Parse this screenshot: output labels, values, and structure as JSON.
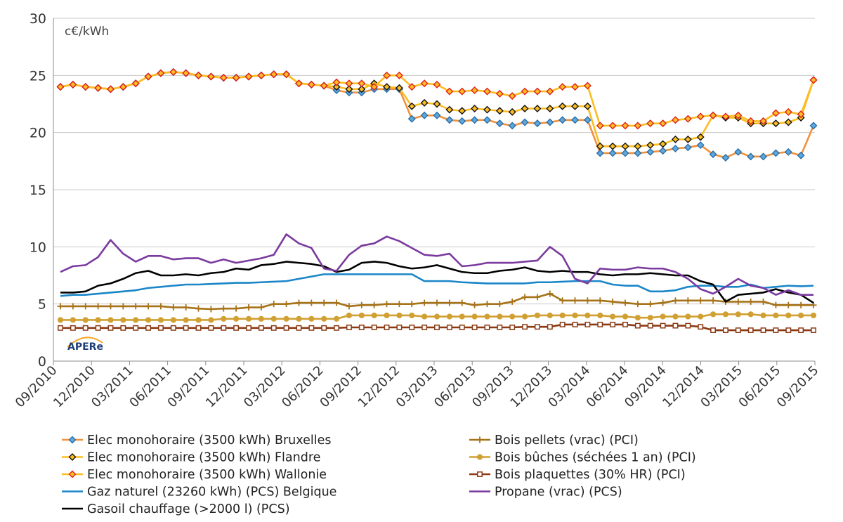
{
  "chart_data": {
    "type": "line",
    "unit_label": "c€/kWh",
    "logo": "APERe",
    "ylim": [
      0,
      30
    ],
    "yticks": [
      0,
      5,
      10,
      15,
      20,
      25,
      30
    ],
    "xtick_labels": [
      "09/2010",
      "12/2010",
      "03/2011",
      "06/2011",
      "09/2011",
      "12/2011",
      "03/2012",
      "06/2012",
      "09/2012",
      "12/2012",
      "03/2013",
      "06/2013",
      "09/2013",
      "12/2013",
      "03/2014",
      "06/2014",
      "09/2014",
      "12/2014",
      "03/2015",
      "06/2015",
      "09/2015"
    ],
    "grid": "horizontal",
    "legend_position": "bottom",
    "series": [
      {
        "name": "Elec monohoraire (3500 kWh) Bruxelles",
        "color": "#f0923c",
        "marker": "diamond-blue",
        "values": [
          24.0,
          24.2,
          24.0,
          23.9,
          23.8,
          24.0,
          24.3,
          24.9,
          25.2,
          25.3,
          25.2,
          25.0,
          24.9,
          24.8,
          24.8,
          24.9,
          25.0,
          25.1,
          25.1,
          24.3,
          24.2,
          24.1,
          23.7,
          23.5,
          23.5,
          23.8,
          23.8,
          23.8,
          21.2,
          21.5,
          21.5,
          21.1,
          21.0,
          21.1,
          21.1,
          20.8,
          20.6,
          20.9,
          20.8,
          20.9,
          21.1,
          21.1,
          21.1,
          18.2,
          18.2,
          18.2,
          18.2,
          18.3,
          18.4,
          18.6,
          18.7,
          18.9,
          18.1,
          17.8,
          18.3,
          17.9,
          17.9,
          18.2,
          18.3,
          18.0,
          20.6
        ]
      },
      {
        "name": "Elec monohoraire (3500 kWh) Flandre",
        "color": "#fcbd24",
        "marker": "diamond-black",
        "values": [
          24.0,
          24.2,
          24.0,
          23.9,
          23.8,
          24.0,
          24.3,
          24.9,
          25.2,
          25.3,
          25.2,
          25.0,
          24.9,
          24.8,
          24.8,
          24.9,
          25.0,
          25.1,
          25.1,
          24.3,
          24.2,
          24.1,
          24.0,
          23.8,
          23.8,
          24.3,
          24.0,
          23.9,
          22.3,
          22.6,
          22.5,
          22.0,
          21.9,
          22.1,
          22.0,
          21.9,
          21.8,
          22.1,
          22.1,
          22.1,
          22.3,
          22.3,
          22.3,
          18.8,
          18.8,
          18.8,
          18.8,
          18.9,
          19.0,
          19.4,
          19.4,
          19.6,
          21.5,
          21.3,
          21.3,
          20.8,
          20.8,
          20.8,
          20.9,
          21.3,
          24.6
        ]
      },
      {
        "name": "Elec monohoraire (3500 kWh) Wallonie",
        "color": "#fcbd24",
        "marker": "diamond-red",
        "values": [
          24.0,
          24.2,
          24.0,
          23.9,
          23.8,
          24.0,
          24.3,
          24.9,
          25.2,
          25.3,
          25.2,
          25.0,
          24.9,
          24.8,
          24.8,
          24.9,
          25.0,
          25.1,
          25.1,
          24.3,
          24.2,
          24.1,
          24.4,
          24.3,
          24.3,
          24.0,
          25.0,
          25.0,
          24.0,
          24.3,
          24.2,
          23.6,
          23.6,
          23.7,
          23.6,
          23.4,
          23.2,
          23.6,
          23.6,
          23.6,
          24.0,
          24.0,
          24.1,
          20.6,
          20.6,
          20.6,
          20.6,
          20.8,
          20.8,
          21.1,
          21.2,
          21.4,
          21.5,
          21.4,
          21.5,
          21.0,
          21.0,
          21.7,
          21.8,
          21.6,
          24.6
        ]
      },
      {
        "name": "Gaz naturel (23260 kWh) (PCS) Belgique",
        "color": "#1a86c8",
        "values": [
          5.7,
          5.8,
          5.8,
          5.9,
          6.0,
          6.1,
          6.2,
          6.4,
          6.5,
          6.6,
          6.7,
          6.7,
          6.75,
          6.8,
          6.85,
          6.85,
          6.9,
          6.95,
          7.0,
          7.2,
          7.4,
          7.6,
          7.6,
          7.6,
          7.6,
          7.6,
          7.6,
          7.6,
          7.6,
          7.0,
          7.0,
          7.0,
          6.9,
          6.85,
          6.8,
          6.8,
          6.8,
          6.8,
          6.9,
          6.9,
          6.95,
          7.0,
          7.0,
          7.0,
          6.7,
          6.6,
          6.6,
          6.1,
          6.1,
          6.2,
          6.5,
          6.6,
          6.6,
          6.5,
          6.5,
          6.7,
          6.4,
          6.5,
          6.6,
          6.55,
          6.6
        ]
      },
      {
        "name": "Gasoil chauffage (>2000 l) (PCS)",
        "color": "#000000",
        "values": [
          6.0,
          6.0,
          6.1,
          6.6,
          6.8,
          7.2,
          7.7,
          7.9,
          7.5,
          7.5,
          7.6,
          7.5,
          7.7,
          7.8,
          8.1,
          8.0,
          8.4,
          8.5,
          8.7,
          8.6,
          8.5,
          8.3,
          7.8,
          8.0,
          8.6,
          8.7,
          8.6,
          8.3,
          8.1,
          8.2,
          8.4,
          8.1,
          7.8,
          7.7,
          7.7,
          7.9,
          8.0,
          8.2,
          7.9,
          7.8,
          7.9,
          7.8,
          7.8,
          7.6,
          7.5,
          7.6,
          7.6,
          7.7,
          7.6,
          7.5,
          7.5,
          7.0,
          6.7,
          5.2,
          5.8,
          5.9,
          6.0,
          6.3,
          6.0,
          5.8,
          5.1
        ]
      },
      {
        "name": "Bois pellets (vrac) (PCI)",
        "color": "#a67318",
        "marker": "plus",
        "values": [
          4.8,
          4.8,
          4.8,
          4.8,
          4.8,
          4.8,
          4.8,
          4.8,
          4.8,
          4.7,
          4.7,
          4.6,
          4.55,
          4.6,
          4.6,
          4.7,
          4.7,
          5.0,
          5.0,
          5.1,
          5.1,
          5.1,
          5.1,
          4.8,
          4.9,
          4.9,
          5.0,
          5.0,
          5.0,
          5.1,
          5.1,
          5.1,
          5.1,
          4.9,
          5.0,
          5.0,
          5.2,
          5.6,
          5.6,
          5.9,
          5.3,
          5.3,
          5.3,
          5.3,
          5.2,
          5.1,
          5.0,
          5.0,
          5.1,
          5.3,
          5.3,
          5.3,
          5.3,
          5.2,
          5.2,
          5.2,
          5.2,
          4.9,
          4.9,
          4.9,
          4.9
        ]
      },
      {
        "name": "Bois bûches (séchées 1 an) (PCI)",
        "color": "#d1a032",
        "marker": "circle",
        "values": [
          3.6,
          3.6,
          3.6,
          3.6,
          3.6,
          3.6,
          3.6,
          3.6,
          3.6,
          3.6,
          3.6,
          3.6,
          3.6,
          3.7,
          3.7,
          3.7,
          3.7,
          3.7,
          3.7,
          3.7,
          3.7,
          3.7,
          3.7,
          4.0,
          4.0,
          4.0,
          4.0,
          4.0,
          4.0,
          3.9,
          3.9,
          3.9,
          3.9,
          3.9,
          3.9,
          3.9,
          3.9,
          3.9,
          4.0,
          4.0,
          4.0,
          4.0,
          4.0,
          4.0,
          3.9,
          3.9,
          3.8,
          3.8,
          3.9,
          3.9,
          3.9,
          3.9,
          4.1,
          4.1,
          4.1,
          4.1,
          4.0,
          4.0,
          4.0,
          4.0,
          4.0
        ]
      },
      {
        "name": "Bois plaquettes (30% HR) (PCI)",
        "color": "#8b3a14",
        "marker": "square",
        "values": [
          2.9,
          2.9,
          2.9,
          2.9,
          2.9,
          2.9,
          2.9,
          2.9,
          2.9,
          2.9,
          2.9,
          2.9,
          2.9,
          2.9,
          2.9,
          2.9,
          2.9,
          2.9,
          2.9,
          2.9,
          2.9,
          2.9,
          2.9,
          2.95,
          2.95,
          2.95,
          2.95,
          2.95,
          2.95,
          2.95,
          2.95,
          2.95,
          2.95,
          2.95,
          2.95,
          2.95,
          2.95,
          3.0,
          3.0,
          3.0,
          3.2,
          3.2,
          3.2,
          3.2,
          3.2,
          3.2,
          3.1,
          3.1,
          3.1,
          3.1,
          3.1,
          3.0,
          2.7,
          2.7,
          2.7,
          2.7,
          2.7,
          2.7,
          2.7,
          2.7,
          2.7
        ]
      },
      {
        "name": "Propane (vrac) (PCS)",
        "color": "#7a3a9e",
        "values": [
          7.8,
          8.3,
          8.4,
          9.1,
          10.6,
          9.4,
          8.7,
          9.2,
          9.2,
          8.9,
          9.0,
          9.0,
          8.6,
          8.9,
          8.6,
          8.8,
          9.0,
          9.3,
          11.1,
          10.3,
          9.9,
          8.1,
          7.9,
          9.3,
          10.1,
          10.3,
          10.9,
          10.5,
          9.9,
          9.3,
          9.2,
          9.4,
          8.3,
          8.4,
          8.6,
          8.6,
          8.6,
          8.7,
          8.8,
          10.0,
          9.2,
          7.2,
          6.8,
          8.1,
          8.0,
          8.0,
          8.2,
          8.1,
          8.1,
          7.8,
          7.2,
          6.3,
          5.9,
          6.5,
          7.2,
          6.6,
          6.4,
          5.8,
          6.2,
          5.8,
          5.8
        ]
      }
    ]
  }
}
